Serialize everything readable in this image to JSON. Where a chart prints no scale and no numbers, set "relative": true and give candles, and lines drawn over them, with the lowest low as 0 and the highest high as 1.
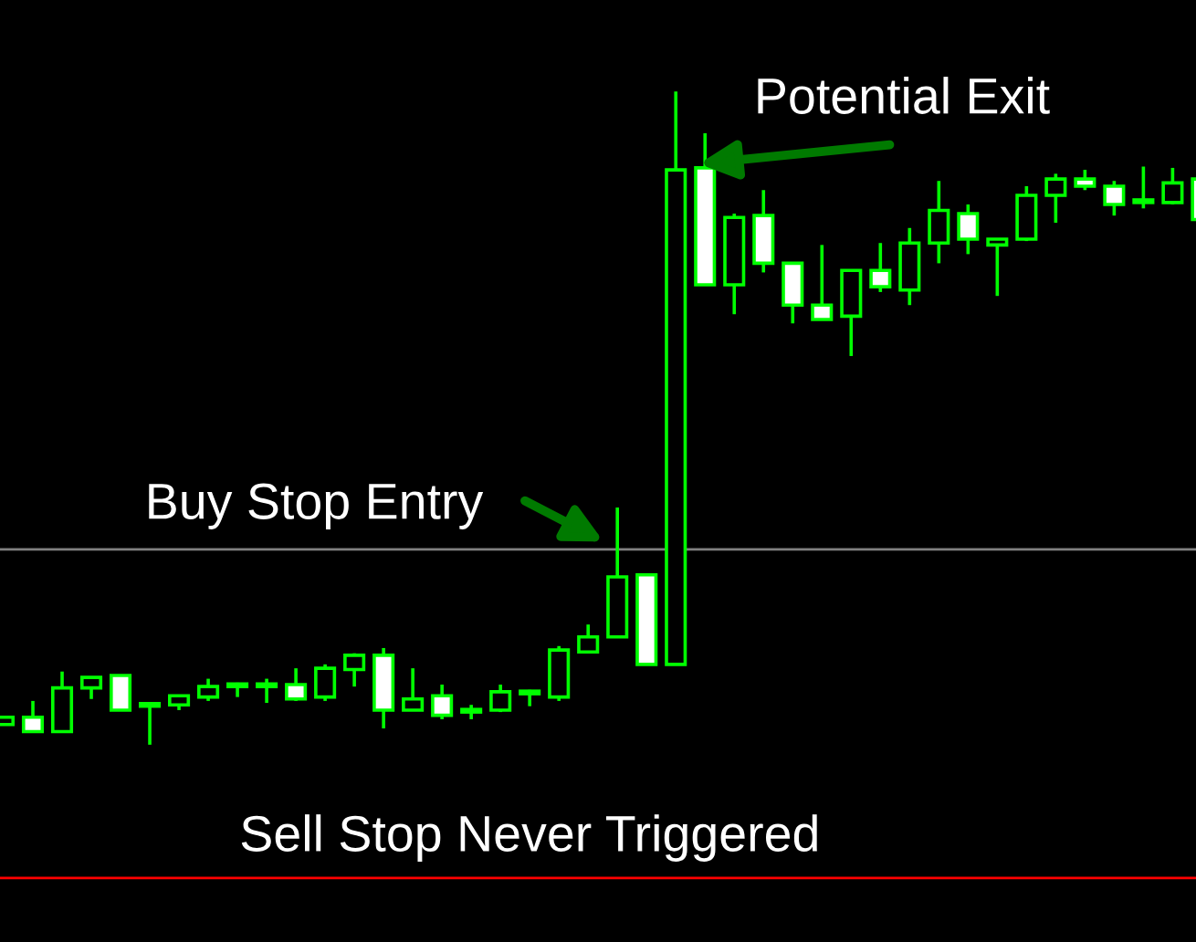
{
  "chart_data": {
    "type": "candlestick",
    "relative": true,
    "color": "#00ff00",
    "categories": [
      null,
      null,
      null,
      null,
      null,
      null,
      null,
      null,
      null,
      null,
      null,
      null,
      null,
      null,
      null,
      null,
      null,
      null,
      null,
      null,
      null,
      null,
      null,
      null,
      null,
      null,
      null,
      null,
      null,
      null,
      null,
      null,
      null,
      null,
      null,
      null,
      null,
      null,
      null,
      null,
      null,
      null
    ],
    "ohlc": [
      [
        0.031,
        0.042,
        0.031,
        0.042
      ],
      [
        0.042,
        0.067,
        0.02,
        0.02
      ],
      [
        0.02,
        0.112,
        0.02,
        0.087
      ],
      [
        0.087,
        0.103,
        0.07,
        0.103
      ],
      [
        0.106,
        0.106,
        0.053,
        0.053
      ],
      [
        0.059,
        0.059,
        0.0,
        0.059
      ],
      [
        0.061,
        0.075,
        0.053,
        0.075
      ],
      [
        0.073,
        0.101,
        0.067,
        0.089
      ],
      [
        0.089,
        0.095,
        0.073,
        0.089
      ],
      [
        0.089,
        0.101,
        0.064,
        0.089
      ],
      [
        0.092,
        0.117,
        0.067,
        0.07
      ],
      [
        0.073,
        0.123,
        0.067,
        0.117
      ],
      [
        0.115,
        0.14,
        0.089,
        0.137
      ],
      [
        0.137,
        0.148,
        0.025,
        0.053
      ],
      [
        0.053,
        0.117,
        0.053,
        0.07
      ],
      [
        0.075,
        0.092,
        0.039,
        0.045
      ],
      [
        0.05,
        0.061,
        0.039,
        0.05
      ],
      [
        0.053,
        0.092,
        0.05,
        0.081
      ],
      [
        0.078,
        0.084,
        0.059,
        0.078
      ],
      [
        0.073,
        0.151,
        0.067,
        0.145
      ],
      [
        0.142,
        0.184,
        0.142,
        0.165
      ],
      [
        0.165,
        0.363,
        0.165,
        0.257
      ],
      [
        0.26,
        0.26,
        0.123,
        0.123
      ],
      [
        0.123,
        1.0,
        0.123,
        0.88
      ],
      [
        0.883,
        0.936,
        0.704,
        0.704
      ],
      [
        0.704,
        0.813,
        0.659,
        0.807
      ],
      [
        0.81,
        0.849,
        0.723,
        0.737
      ],
      [
        0.737,
        0.737,
        0.645,
        0.673
      ],
      [
        0.673,
        0.765,
        0.651,
        0.651
      ],
      [
        0.656,
        0.726,
        0.595,
        0.726
      ],
      [
        0.726,
        0.768,
        0.693,
        0.701
      ],
      [
        0.696,
        0.791,
        0.673,
        0.768
      ],
      [
        0.768,
        0.863,
        0.737,
        0.818
      ],
      [
        0.813,
        0.827,
        0.751,
        0.774
      ],
      [
        0.765,
        0.774,
        0.687,
        0.774
      ],
      [
        0.774,
        0.855,
        0.771,
        0.841
      ],
      [
        0.841,
        0.874,
        0.799,
        0.866
      ],
      [
        0.866,
        0.88,
        0.849,
        0.855
      ],
      [
        0.855,
        0.863,
        0.81,
        0.827
      ],
      [
        0.83,
        0.885,
        0.821,
        0.83
      ],
      [
        0.83,
        0.883,
        0.827,
        0.86
      ],
      [
        0.866,
        0.866,
        0.804,
        0.804
      ]
    ],
    "ref_lines": [
      {
        "axis": "y",
        "value": 0.299,
        "color": "#808080"
      },
      {
        "axis": "y",
        "value": -0.204,
        "color": "#ff0000",
        "label": "Sell Stop Never Triggered"
      }
    ],
    "annotations": [
      "Buy Stop Entry",
      "Potential Exit"
    ]
  }
}
